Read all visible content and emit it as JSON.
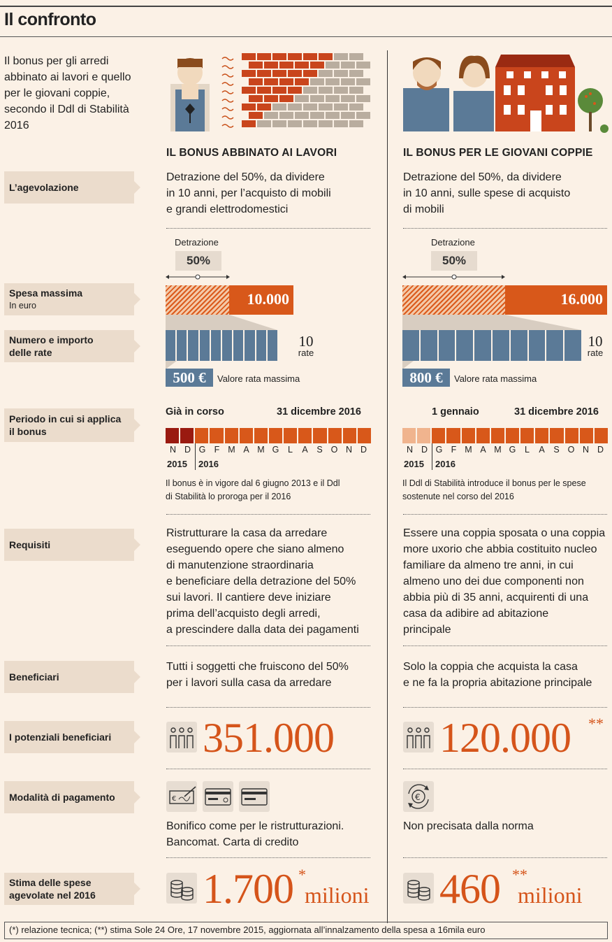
{
  "title": "Il confronto",
  "intro": "Il bonus per gli arredi abbinato ai lavori e quello per le giovani coppie, secondo il Ddl di Stabilità 2016",
  "labels": {
    "agevolazione": "L’agevolazione",
    "spesa": "Spesa massima",
    "spesa_sub": "In euro",
    "rate_line1": "Numero e importo",
    "rate_line2": "delle rate",
    "periodo_line1": "Periodo in cui si applica",
    "periodo_line2": "il bonus",
    "requisiti": "Requisiti",
    "beneficiari": "Beneficiari",
    "potenziali": "I potenziali beneficiari",
    "modalita": "Modalità di pagamento",
    "stima_line1": "Stima delle spese",
    "stima_line2": "agevolate nel 2016"
  },
  "common": {
    "detrazione_label": "Detrazione",
    "detrazione_value": "50%",
    "num_rate": "10",
    "rate_word": "rate",
    "valore_rata": "Valore rata massima",
    "period_end": "31 dicembre 2016",
    "months_2015": [
      "N",
      "D"
    ],
    "months_2016": [
      "G",
      "F",
      "M",
      "A",
      "M",
      "G",
      "L",
      "A",
      "S",
      "O",
      "N",
      "D"
    ],
    "year_2015": "2015",
    "year_2016": "2016",
    "milioni": "milioni"
  },
  "left": {
    "heading": "IL BONUS ABBINATO AI LAVORI",
    "agevolazione": [
      "Detrazione del 50%, da dividere",
      "in 10 anni, per l’acquisto di mobili",
      "e grandi elettrodomestici"
    ],
    "spesa_max": "10.000",
    "rata": "500 €",
    "period_start": "Già in corso",
    "period_note": [
      "Il bonus è in vigore dal 6 giugno 2013 e il Ddl",
      "di Stabilità lo proroga per il 2016"
    ],
    "requisiti": [
      "Ristrutturare la casa da arredare",
      "eseguendo opere che siano almeno",
      "di manutenzione straordinaria",
      "e beneficiare della detrazione del 50%",
      "sui lavori. Il cantiere deve iniziare",
      "prima dell’acquisto degli arredi,",
      "a prescindere dalla data dei pagamenti"
    ],
    "beneficiari": [
      "Tutti i soggetti che fruiscono del 50%",
      "per i lavori sulla casa da arredare"
    ],
    "potenziali": "351.000",
    "modalita": [
      "Bonifico come per le ristrutturazioni.",
      "Bancomat. Carta di credito"
    ],
    "stima": "1.700",
    "stima_mark": "*"
  },
  "right": {
    "heading": "IL BONUS PER LE GIOVANI COPPIE",
    "agevolazione": [
      "Detrazione del 50%, da dividere",
      "in 10 anni, sulle spese di acquisto",
      "di mobili"
    ],
    "spesa_max": "16.000",
    "rata": "800 €",
    "period_start": "1 gennaio",
    "period_note": [
      "Il Ddl di Stabilità introduce il bonus per le spese",
      "sostenute nel corso del 2016"
    ],
    "requisiti": [
      "Essere una coppia sposata o una coppia",
      "more uxorio che abbia costituito nucleo",
      "familiare da almeno tre anni, in cui",
      "almeno uno dei due componenti non",
      "abbia più di 35 anni, acquirenti di una",
      "casa da adibire ad abitazione",
      "principale"
    ],
    "beneficiari": [
      "Solo la coppia che acquista la casa",
      "e ne fa la propria abitazione principale"
    ],
    "potenziali": "120.000",
    "potenziali_mark": "**",
    "modalita": [
      "Non precisata dalla norma"
    ],
    "stima": "460",
    "stima_mark": "**"
  },
  "chart_data": {
    "type": "bar",
    "title": "Spesa massima",
    "categories": [
      "Il bonus abbinato ai lavori",
      "Il bonus per le giovani coppie"
    ],
    "values": [
      10000,
      16000
    ],
    "ylabel": "In euro",
    "deduction_pct": 50,
    "installments": 10,
    "installment_values": [
      500,
      800
    ]
  },
  "footer": "(*) relazione tecnica; (**) stima Sole 24 Ore, 17 novembre 2015, aggiornata all’innalzamento della spesa a 16mila euro",
  "colors": {
    "accent": "#d8581a",
    "blue": "#5b7a97",
    "label_bg": "#ebdccc",
    "dark_red": "#9a1a10",
    "light_orange": "#f0b48e"
  }
}
